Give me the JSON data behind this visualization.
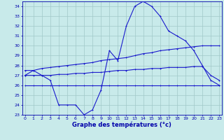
{
  "hours": [
    0,
    1,
    2,
    3,
    4,
    5,
    6,
    7,
    8,
    9,
    10,
    11,
    12,
    13,
    14,
    15,
    16,
    17,
    18,
    19,
    20,
    21,
    22,
    23
  ],
  "temp_main": [
    27.0,
    27.5,
    27.0,
    26.5,
    24.0,
    24.0,
    24.0,
    23.0,
    23.5,
    25.5,
    29.5,
    28.5,
    32.0,
    34.0,
    34.5,
    34.0,
    33.0,
    31.5,
    31.0,
    30.5,
    29.5,
    28.0,
    26.5,
    26.0
  ],
  "temp_upper": [
    27.5,
    27.5,
    27.7,
    27.8,
    27.9,
    28.0,
    28.1,
    28.2,
    28.3,
    28.5,
    28.6,
    28.7,
    28.8,
    29.0,
    29.2,
    29.3,
    29.5,
    29.6,
    29.7,
    29.8,
    29.9,
    30.0,
    30.0,
    30.0
  ],
  "temp_lower": [
    27.0,
    27.0,
    27.0,
    27.0,
    27.1,
    27.1,
    27.2,
    27.2,
    27.3,
    27.3,
    27.4,
    27.5,
    27.5,
    27.6,
    27.6,
    27.7,
    27.7,
    27.8,
    27.8,
    27.8,
    27.9,
    27.9,
    27.0,
    26.5
  ],
  "temp_flat": [
    26.0,
    26.0,
    26.0,
    26.0,
    26.0,
    26.0,
    26.0,
    26.0,
    26.0,
    26.0,
    26.0,
    26.0,
    26.0,
    26.0,
    26.0,
    26.0,
    26.0,
    26.0,
    26.0,
    26.0,
    26.0,
    26.0,
    26.0,
    26.0
  ],
  "ylim": [
    23,
    34.5
  ],
  "xlim": [
    -0.3,
    23.3
  ],
  "yticks": [
    23,
    24,
    25,
    26,
    27,
    28,
    29,
    30,
    31,
    32,
    33,
    34
  ],
  "xticks": [
    0,
    1,
    2,
    3,
    4,
    5,
    6,
    7,
    8,
    9,
    10,
    11,
    12,
    13,
    14,
    15,
    16,
    17,
    18,
    19,
    20,
    21,
    22,
    23
  ],
  "line_color": "#1a1acd",
  "bg_color": "#c8eaea",
  "grid_color": "#a0c8c8",
  "xlabel": "Graphe des températures (°c)",
  "xlabel_color": "#0000aa",
  "tick_color": "#0000aa"
}
